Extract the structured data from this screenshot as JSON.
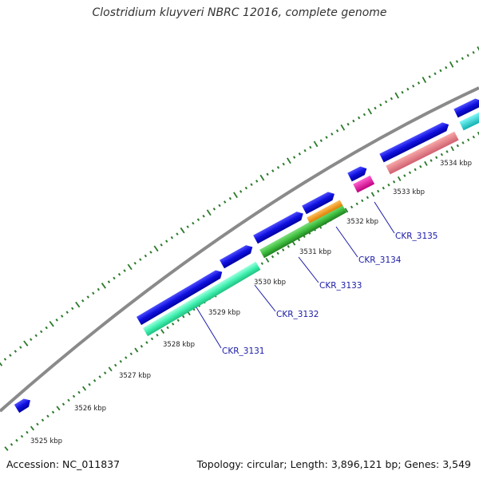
{
  "title": "Clostridium kluyveri NBRC 12016, complete genome",
  "accession_text": "Accession: NC_011837",
  "summary_text": "Topology: circular; Length: 3,896,121 bp; Genes: 3,549",
  "colors": {
    "backbone": "#8a8a8a",
    "tick": "#2b7a2b",
    "cds_forward": "#1010e0",
    "cds_teal": "#40f0b0",
    "cds_green": "#40c040",
    "cds_orange": "#f09010",
    "cds_pink": "#e070a0",
    "cds_magenta": "#e010a0",
    "cds_cyan": "#20d0d0",
    "label": "#1a1aa8"
  },
  "scale_labels": [
    "3525 kbp",
    "3526 kbp",
    "3527 kbp",
    "3528 kbp",
    "3529 kbp",
    "3530 kbp",
    "3531 kbp",
    "3532 kbp",
    "3533 kbp",
    "3534 kbp"
  ],
  "gene_labels": [
    "CKR_3131",
    "CKR_3132",
    "CKR_3133",
    "CKR_3134",
    "CKR_3135"
  ]
}
